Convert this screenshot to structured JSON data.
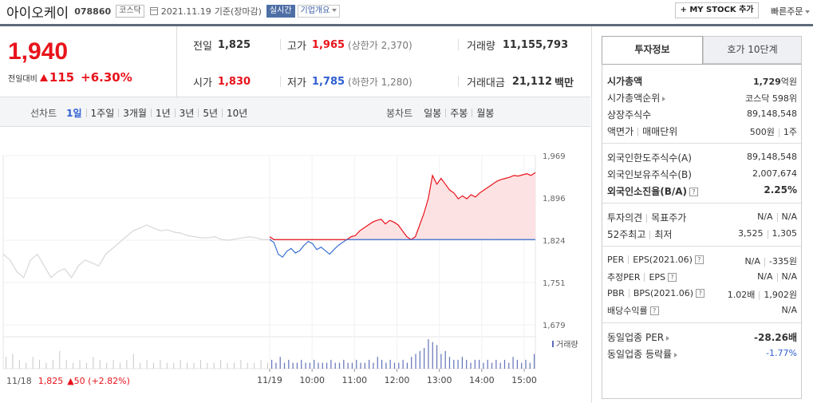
{
  "header": {
    "name": "아이오케이",
    "code": "078860",
    "market": "코스닥",
    "date": "2021.11.19",
    "basis": "기준(장마감)",
    "realtime": "실시간",
    "overview": "기업개요",
    "mystock": "+ MY STOCK 추가",
    "quick_order": "빠른주문"
  },
  "price": {
    "current": "1,940",
    "change_label": "전일대비",
    "change": "115",
    "change_pct": "+6.30%"
  },
  "summary": {
    "prev_label": "전일",
    "prev": "1,825",
    "high_label": "고가",
    "high": "1,965",
    "upper_limit": "(상한가 2,370)",
    "volume_label": "거래량",
    "volume": "11,155,793",
    "open_label": "시가",
    "open": "1,830",
    "low_label": "저가",
    "low": "1,785",
    "lower_limit": "(하한가 1,280)",
    "amount_label": "거래대금",
    "amount": "21,112",
    "amount_unit": "백만"
  },
  "line_chart_tabs": {
    "label": "선차트",
    "items": [
      "1일",
      "1주일",
      "3개월",
      "1년",
      "3년",
      "5년",
      "10년"
    ],
    "active": 0
  },
  "candle_chart_tabs": {
    "label": "봉차트",
    "items": [
      "일봉",
      "주봉",
      "월봉"
    ]
  },
  "footer": {
    "prev_date": "11/18",
    "prev_price": "1,825",
    "prev_change": "▲50 (+2.82%)"
  },
  "chart_data": {
    "type": "line",
    "y_ticks": [
      "1,969",
      "1,896",
      "1,824",
      "1,751",
      "1,679"
    ],
    "ylim": [
      1679,
      1969
    ],
    "baseline": 1825,
    "x_ticks": [
      "11/19",
      "10:00",
      "11:00",
      "12:00",
      "13:00",
      "14:00",
      "15:00"
    ],
    "volume_label": "거래량",
    "prev_day": [
      1800,
      1790,
      1770,
      1760,
      1790,
      1800,
      1780,
      1760,
      1770,
      1775,
      1760,
      1780,
      1790,
      1785,
      1780,
      1800,
      1810,
      1820,
      1830,
      1840,
      1845,
      1850,
      1845,
      1840,
      1842,
      1838,
      1836,
      1832,
      1830,
      1828,
      1828,
      1830,
      1825,
      1824,
      1826,
      1828,
      1830,
      1828,
      1825,
      1825
    ],
    "today": [
      1830,
      1820,
      1800,
      1795,
      1805,
      1810,
      1802,
      1806,
      1815,
      1822,
      1818,
      1808,
      1812,
      1806,
      1800,
      1808,
      1815,
      1820,
      1825,
      1830,
      1832,
      1840,
      1845,
      1850,
      1855,
      1858,
      1860,
      1852,
      1858,
      1855,
      1850,
      1840,
      1830,
      1825,
      1830,
      1850,
      1870,
      1895,
      1935,
      1920,
      1930,
      1920,
      1910,
      1905,
      1895,
      1900,
      1895,
      1902,
      1898,
      1905,
      1910,
      1915,
      1920,
      1925,
      1928,
      1930,
      1932,
      1935,
      1934,
      1936,
      1938,
      1935,
      1940
    ],
    "prev_volume": [
      0.4,
      0.5,
      0.3,
      0.2,
      0.4,
      0.3,
      0.2,
      0.3,
      0.6,
      0.3,
      0.2,
      0.3,
      0.2,
      0.4,
      0.3,
      0.2,
      0.3,
      0.2,
      0.3,
      0.5,
      0.2,
      0.3,
      0.2,
      0.3,
      0.2,
      0.2,
      0.3,
      0.2,
      0.2,
      0.3,
      0.2,
      0.2,
      0.3,
      0.2,
      0.2,
      0.3,
      0.2,
      0.2,
      0.3,
      0.2
    ],
    "today_volume": [
      0.3,
      0.2,
      0.4,
      0.2,
      0.3,
      0.2,
      0.2,
      0.3,
      0.2,
      0.2,
      0.3,
      0.2,
      0.2,
      0.2,
      0.3,
      0.2,
      0.2,
      0.3,
      0.2,
      0.2,
      0.3,
      0.2,
      0.2,
      0.3,
      0.2,
      0.4,
      0.3,
      0.2,
      0.3,
      0.2,
      0.2,
      0.3,
      0.2,
      0.4,
      0.5,
      0.6,
      0.7,
      1.0,
      0.9,
      0.8,
      0.5,
      0.6,
      0.4,
      0.3,
      0.3,
      0.4,
      0.3,
      0.2,
      0.3,
      0.3,
      0.2,
      0.3,
      0.2,
      0.3,
      0.2,
      0.3,
      0.2,
      0.4,
      0.3,
      0.2,
      0.3,
      0.2,
      0.5
    ]
  },
  "right_panel": {
    "tabs": [
      "투자정보",
      "호가 10단계"
    ],
    "rows": [
      {
        "label": "시가총액",
        "value": "1,729",
        "unit": "억원"
      },
      {
        "label": "시가총액순위",
        "value": "코스닥 598위"
      },
      {
        "label": "상장주식수",
        "value": "89,148,548"
      },
      {
        "label": "액면가",
        "label2": "매매단위",
        "value": "500원",
        "value2": "1주"
      },
      {
        "label": "외국인한도주식수(A)",
        "value": "89,148,548"
      },
      {
        "label": "외국인보유주식수(B)",
        "value": "2,007,674"
      },
      {
        "label": "외국인소진율(B/A)",
        "value": "2.25%"
      },
      {
        "label": "투자의견",
        "label2": "목표주가",
        "value": "N/A",
        "value2": "N/A"
      },
      {
        "label": "52주최고",
        "label2": "최저",
        "value": "3,525",
        "value2": "1,305"
      },
      {
        "label": "PER",
        "label2": "EPS(2021.06)",
        "value": "N/A",
        "value2": "-335원"
      },
      {
        "label": "추정PER",
        "label2": "EPS",
        "value": "N/A",
        "value2": "N/A"
      },
      {
        "label": "PBR",
        "label2": "BPS(2021.06)",
        "value": "1.02배",
        "value2": "1,902원"
      },
      {
        "label": "배당수익률",
        "value": "N/A"
      },
      {
        "label": "동일업종 PER",
        "value": "-28.26배"
      },
      {
        "label": "동일업종 등락률",
        "value": "-1.77%"
      }
    ]
  }
}
